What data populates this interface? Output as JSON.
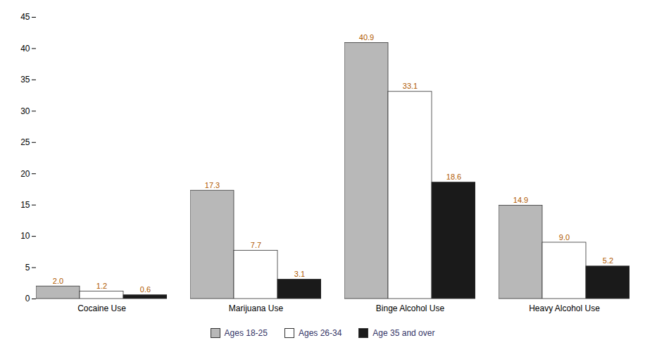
{
  "chart_data": {
    "type": "bar",
    "categories": [
      "Cocaine Use",
      "Marijuana Use",
      "Binge Alcohol Use",
      "Heavy Alcohol Use"
    ],
    "series": [
      {
        "name": "Ages 18-25",
        "color": "#b8b8b8",
        "values": [
          2.0,
          17.3,
          40.9,
          14.9
        ],
        "value_labels": [
          "2.0",
          "17.3",
          "40.9",
          "14.9"
        ]
      },
      {
        "name": "Ages 26-34",
        "color": "#ffffff",
        "values": [
          1.2,
          7.7,
          33.1,
          9.0
        ],
        "value_labels": [
          "1.2",
          "7.7",
          "33.1",
          "9.0"
        ]
      },
      {
        "name": "Age 35 and over",
        "color": "#1a1a1a",
        "values": [
          0.6,
          3.1,
          18.6,
          5.2
        ],
        "value_labels": [
          "0.6",
          "3.1",
          "18.6",
          "5.2"
        ]
      }
    ],
    "ylim": [
      0,
      45
    ],
    "yticks": [
      0,
      5,
      10,
      15,
      20,
      25,
      30,
      35,
      40,
      45
    ],
    "grid": false,
    "data_labels": true,
    "legend": "bottom"
  }
}
